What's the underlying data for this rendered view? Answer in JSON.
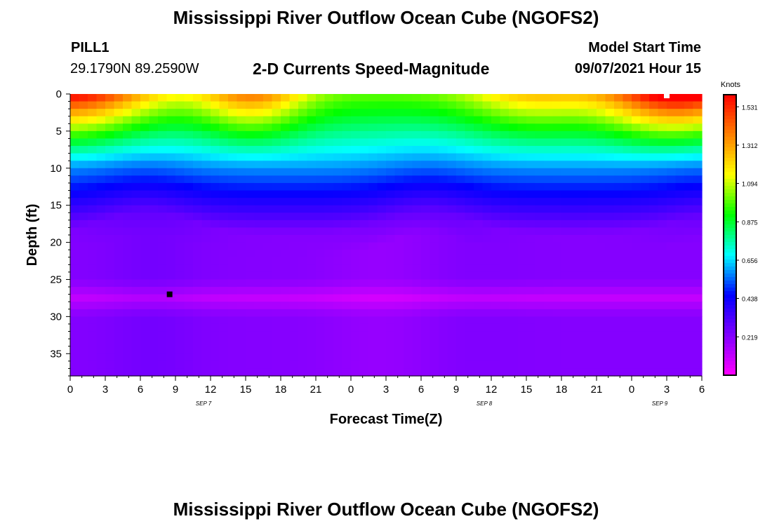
{
  "header": {
    "title": "Mississippi River Outflow Ocean Cube (NGOFS2)",
    "station": "PILL1",
    "coords": "29.1790N  89.2590W",
    "subtitle": "2-D Currents Speed-Magnitude",
    "model_label": "Model Start Time",
    "model_time": "09/07/2021 Hour 15"
  },
  "footer": {
    "title": "Mississippi River Outflow Ocean Cube (NGOFS2)"
  },
  "chart_data": {
    "type": "heatmap",
    "title": "2-D Currents Speed-Magnitude",
    "xlabel": "Forecast Time(Z)",
    "ylabel": "Depth (ft)",
    "colorbar_label": "Knots",
    "x_ticks": [
      "0",
      "3",
      "6",
      "9",
      "12",
      "15",
      "18",
      "21",
      "0",
      "3",
      "6",
      "9",
      "12",
      "15",
      "18",
      "21",
      "0",
      "3",
      "6"
    ],
    "x_date_labels": [
      {
        "text": "SEP 7",
        "tick_index": 3.8
      },
      {
        "text": "SEP 8",
        "tick_index": 11.8
      },
      {
        "text": "SEP 9",
        "tick_index": 16.8
      }
    ],
    "y_ticks": [
      0,
      5,
      10,
      15,
      20,
      25,
      30,
      35
    ],
    "ylim": [
      0,
      38
    ],
    "xlim_hours": [
      0,
      54
    ],
    "colorbar_ticks": [
      "1.531",
      "1.312",
      "1.094",
      "0.875",
      "0.656",
      "0.438",
      "0.219"
    ],
    "color_range": [
      0,
      1.6
    ],
    "colorscale": [
      "#ff00ff",
      "#8000ff",
      "#0000ff",
      "#00ffff",
      "#00ff00",
      "#ffff00",
      "#ff8000",
      "#ff0000"
    ],
    "markers": [
      {
        "hour": 8.5,
        "depth": 27,
        "color": "#000000"
      },
      {
        "hour": 51,
        "depth": 0.2,
        "color": "#ffffff"
      }
    ]
  }
}
